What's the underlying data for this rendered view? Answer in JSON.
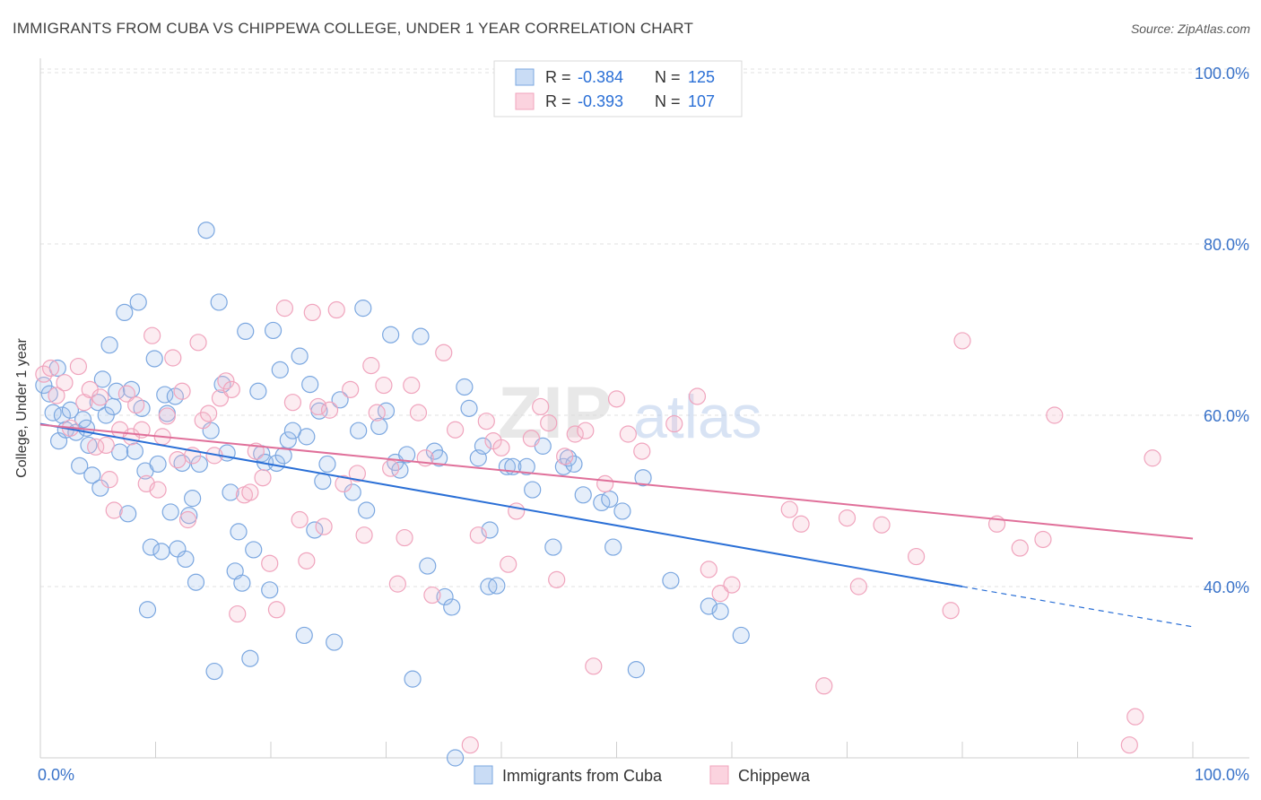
{
  "header": {
    "title": "IMMIGRANTS FROM CUBA VS CHIPPEWA COLLEGE, UNDER 1 YEAR CORRELATION CHART",
    "source": "Source: ZipAtlas.com"
  },
  "watermark": "ZIPatlas",
  "chart_data": {
    "type": "scatter",
    "title": "IMMIGRANTS FROM CUBA VS CHIPPEWA COLLEGE, UNDER 1 YEAR CORRELATION CHART",
    "xlabel": "",
    "ylabel": "College, Under 1 year",
    "xlim": [
      0,
      100
    ],
    "ylim": [
      20,
      103
    ],
    "x_tick_labels": [
      "0.0%",
      "100.0%"
    ],
    "y_ticks": [
      40,
      60,
      80,
      100
    ],
    "y_tick_labels": [
      "40.0%",
      "60.0%",
      "80.0%",
      "100.0%"
    ],
    "grid": true,
    "legend_stats": [
      {
        "r_label": "R =",
        "r_value": "-0.384",
        "n_label": "N =",
        "n_value": "125"
      },
      {
        "r_label": "R =",
        "r_value": "-0.393",
        "n_label": "N =",
        "n_value": "107"
      }
    ],
    "series": [
      {
        "name": "Immigrants from Cuba",
        "color": "#7ba7e0",
        "line_color": "#2a6fd6",
        "trend": {
          "x0": 0,
          "y0": 59.0,
          "x1": 80,
          "y1": 40.0,
          "dashed_to_x": 100,
          "dashed_to_y": 35.3
        },
        "points": [
          [
            0.3,
            63.5
          ],
          [
            0.8,
            62.5
          ],
          [
            1.1,
            60.3
          ],
          [
            1.6,
            57.0
          ],
          [
            1.9,
            60.0
          ],
          [
            2.2,
            58.3
          ],
          [
            2.6,
            60.6
          ],
          [
            3.1,
            58.0
          ],
          [
            3.4,
            54.1
          ],
          [
            3.7,
            59.5
          ],
          [
            4.0,
            58.5
          ],
          [
            4.2,
            56.5
          ],
          [
            4.5,
            53.0
          ],
          [
            5.0,
            61.5
          ],
          [
            5.2,
            51.5
          ],
          [
            5.4,
            64.2
          ],
          [
            5.7,
            60.0
          ],
          [
            6.0,
            68.2
          ],
          [
            6.3,
            61.0
          ],
          [
            6.6,
            62.8
          ],
          [
            6.9,
            55.7
          ],
          [
            7.3,
            72.0
          ],
          [
            7.6,
            48.5
          ],
          [
            7.9,
            63.0
          ],
          [
            8.2,
            55.8
          ],
          [
            8.5,
            73.2
          ],
          [
            8.8,
            60.8
          ],
          [
            9.1,
            53.5
          ],
          [
            9.3,
            37.3
          ],
          [
            9.6,
            44.6
          ],
          [
            9.9,
            66.6
          ],
          [
            10.2,
            54.3
          ],
          [
            10.5,
            44.1
          ],
          [
            10.8,
            62.4
          ],
          [
            11.0,
            60.2
          ],
          [
            11.3,
            48.7
          ],
          [
            11.7,
            62.2
          ],
          [
            11.9,
            44.4
          ],
          [
            12.3,
            54.4
          ],
          [
            12.6,
            43.2
          ],
          [
            12.9,
            48.3
          ],
          [
            13.2,
            50.3
          ],
          [
            13.5,
            40.5
          ],
          [
            13.8,
            54.3
          ],
          [
            14.4,
            81.6
          ],
          [
            14.8,
            58.2
          ],
          [
            15.1,
            30.1
          ],
          [
            15.5,
            73.2
          ],
          [
            15.8,
            63.6
          ],
          [
            16.2,
            55.6
          ],
          [
            16.5,
            51.0
          ],
          [
            16.9,
            41.8
          ],
          [
            17.2,
            46.4
          ],
          [
            17.5,
            40.4
          ],
          [
            17.8,
            69.8
          ],
          [
            18.2,
            31.6
          ],
          [
            18.5,
            44.3
          ],
          [
            18.9,
            62.8
          ],
          [
            19.2,
            55.5
          ],
          [
            19.5,
            54.5
          ],
          [
            19.9,
            39.6
          ],
          [
            20.2,
            69.9
          ],
          [
            20.5,
            54.4
          ],
          [
            20.8,
            65.3
          ],
          [
            21.1,
            55.3
          ],
          [
            21.5,
            57.1
          ],
          [
            21.9,
            58.2
          ],
          [
            22.5,
            66.9
          ],
          [
            22.9,
            34.3
          ],
          [
            23.1,
            57.5
          ],
          [
            23.4,
            63.6
          ],
          [
            23.8,
            46.6
          ],
          [
            24.2,
            60.5
          ],
          [
            24.5,
            52.3
          ],
          [
            24.9,
            54.3
          ],
          [
            25.5,
            33.5
          ],
          [
            26.0,
            61.8
          ],
          [
            27.1,
            51.0
          ],
          [
            27.6,
            58.2
          ],
          [
            28.0,
            72.5
          ],
          [
            28.3,
            48.9
          ],
          [
            29.4,
            58.7
          ],
          [
            30.0,
            60.5
          ],
          [
            30.4,
            69.4
          ],
          [
            30.8,
            54.5
          ],
          [
            31.2,
            53.6
          ],
          [
            31.8,
            55.4
          ],
          [
            32.3,
            29.2
          ],
          [
            33.0,
            69.2
          ],
          [
            33.6,
            42.4
          ],
          [
            34.2,
            55.8
          ],
          [
            34.6,
            55.0
          ],
          [
            35.1,
            38.8
          ],
          [
            35.7,
            37.6
          ],
          [
            36.8,
            63.3
          ],
          [
            37.2,
            60.8
          ],
          [
            38.0,
            55.0
          ],
          [
            38.4,
            56.4
          ],
          [
            38.9,
            40.0
          ],
          [
            39.0,
            46.6
          ],
          [
            39.6,
            40.1
          ],
          [
            40.5,
            54.0
          ],
          [
            41.0,
            54.0
          ],
          [
            42.2,
            54.0
          ],
          [
            42.7,
            51.3
          ],
          [
            43.6,
            56.4
          ],
          [
            44.5,
            44.6
          ],
          [
            45.4,
            54.0
          ],
          [
            45.8,
            55.0
          ],
          [
            46.3,
            54.3
          ],
          [
            47.1,
            50.7
          ],
          [
            48.7,
            49.8
          ],
          [
            49.4,
            50.2
          ],
          [
            49.7,
            44.6
          ],
          [
            50.5,
            48.8
          ],
          [
            51.7,
            30.3
          ],
          [
            52.3,
            52.7
          ],
          [
            54.7,
            40.7
          ],
          [
            58.0,
            37.7
          ],
          [
            59.0,
            37.1
          ],
          [
            60.8,
            34.3
          ],
          [
            36.0,
            20.0
          ],
          [
            1.5,
            65.5
          ]
        ]
      },
      {
        "name": "Chippewa",
        "color": "#f0a4bd",
        "line_color": "#e0709a",
        "trend": {
          "x0": 0,
          "y0": 58.9,
          "x1": 100,
          "y1": 45.6
        },
        "points": [
          [
            0.3,
            64.8
          ],
          [
            0.9,
            65.5
          ],
          [
            1.4,
            62.3
          ],
          [
            2.1,
            63.8
          ],
          [
            2.6,
            58.5
          ],
          [
            3.3,
            65.7
          ],
          [
            3.8,
            61.5
          ],
          [
            4.3,
            63.0
          ],
          [
            4.8,
            56.3
          ],
          [
            5.2,
            62.1
          ],
          [
            5.7,
            56.5
          ],
          [
            6.0,
            52.5
          ],
          [
            6.4,
            48.9
          ],
          [
            6.9,
            58.3
          ],
          [
            7.5,
            62.5
          ],
          [
            7.9,
            57.5
          ],
          [
            8.3,
            61.2
          ],
          [
            8.8,
            58.3
          ],
          [
            9.2,
            52.0
          ],
          [
            9.7,
            69.3
          ],
          [
            10.2,
            51.3
          ],
          [
            10.6,
            57.5
          ],
          [
            11.0,
            59.9
          ],
          [
            11.5,
            66.7
          ],
          [
            11.9,
            54.8
          ],
          [
            12.3,
            62.8
          ],
          [
            12.8,
            47.8
          ],
          [
            13.2,
            55.3
          ],
          [
            13.7,
            68.5
          ],
          [
            14.1,
            59.4
          ],
          [
            14.6,
            60.2
          ],
          [
            15.1,
            55.3
          ],
          [
            15.6,
            62.0
          ],
          [
            16.1,
            64.0
          ],
          [
            16.6,
            63.0
          ],
          [
            17.1,
            36.8
          ],
          [
            17.7,
            50.7
          ],
          [
            18.2,
            51.0
          ],
          [
            18.7,
            55.8
          ],
          [
            19.3,
            52.7
          ],
          [
            19.9,
            42.7
          ],
          [
            20.5,
            37.3
          ],
          [
            21.2,
            72.5
          ],
          [
            21.9,
            61.5
          ],
          [
            22.5,
            47.8
          ],
          [
            23.1,
            43.0
          ],
          [
            23.6,
            72.0
          ],
          [
            24.1,
            61.0
          ],
          [
            24.6,
            47.0
          ],
          [
            25.1,
            60.6
          ],
          [
            25.7,
            72.3
          ],
          [
            26.3,
            52.0
          ],
          [
            26.9,
            63.0
          ],
          [
            27.5,
            53.2
          ],
          [
            28.1,
            46.0
          ],
          [
            28.7,
            65.8
          ],
          [
            29.2,
            60.3
          ],
          [
            29.8,
            63.5
          ],
          [
            30.4,
            53.8
          ],
          [
            31.0,
            40.3
          ],
          [
            31.6,
            45.7
          ],
          [
            32.2,
            63.5
          ],
          [
            32.8,
            60.3
          ],
          [
            33.4,
            55.0
          ],
          [
            34.0,
            39.0
          ],
          [
            35.0,
            67.3
          ],
          [
            36.0,
            58.3
          ],
          [
            37.3,
            21.5
          ],
          [
            38.0,
            46.0
          ],
          [
            38.7,
            59.3
          ],
          [
            39.3,
            57.0
          ],
          [
            40.0,
            56.2
          ],
          [
            40.6,
            42.6
          ],
          [
            41.3,
            48.8
          ],
          [
            42.6,
            57.3
          ],
          [
            43.4,
            61.0
          ],
          [
            44.1,
            59.1
          ],
          [
            44.8,
            40.8
          ],
          [
            45.5,
            55.2
          ],
          [
            46.4,
            57.8
          ],
          [
            47.3,
            58.2
          ],
          [
            48.0,
            30.7
          ],
          [
            49.0,
            52.0
          ],
          [
            50.0,
            61.9
          ],
          [
            51.0,
            57.8
          ],
          [
            52.2,
            55.8
          ],
          [
            55.0,
            59.0
          ],
          [
            57.0,
            62.2
          ],
          [
            58.0,
            42.0
          ],
          [
            59.0,
            39.2
          ],
          [
            60.0,
            40.2
          ],
          [
            65.0,
            49.0
          ],
          [
            66.0,
            47.3
          ],
          [
            68.0,
            28.4
          ],
          [
            70.0,
            48.0
          ],
          [
            71.0,
            40.0
          ],
          [
            73.0,
            47.2
          ],
          [
            76.0,
            43.5
          ],
          [
            79.0,
            37.2
          ],
          [
            80.0,
            68.7
          ],
          [
            83.0,
            47.3
          ],
          [
            85.0,
            44.5
          ],
          [
            87.0,
            45.5
          ],
          [
            88.0,
            60.0
          ],
          [
            94.5,
            21.5
          ],
          [
            95.0,
            24.8
          ],
          [
            96.5,
            55.0
          ]
        ]
      }
    ]
  },
  "legend_bottom": [
    "Immigrants from Cuba",
    "Chippewa"
  ]
}
